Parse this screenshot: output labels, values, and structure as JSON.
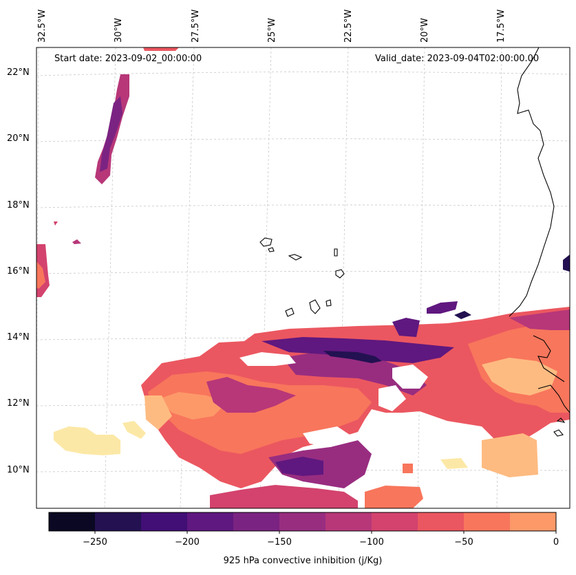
{
  "header": {
    "start_date": "Start date: 2023-09-02_00:00:00",
    "valid_date": "Valid_date: 2023-09-04T02:00:00.00"
  },
  "map": {
    "lon_labels": [
      "32.5°W",
      "30°W",
      "27.5°W",
      "25°W",
      "22.5°W",
      "20°W",
      "17.5°W"
    ],
    "lat_labels": [
      "22°N",
      "20°N",
      "18°N",
      "16°N",
      "14°N",
      "12°N",
      "10°N"
    ],
    "gridlines": true,
    "coastline_color": "#000000"
  },
  "colorbar": {
    "title": "925 hPa convective inhibition (j/Kg)",
    "tick_labels": [
      "−250",
      "−200",
      "−150",
      "−100",
      "−50",
      "0"
    ],
    "tick_values": [
      -250,
      -200,
      -150,
      -100,
      -50,
      0
    ],
    "range": [
      -275,
      0
    ],
    "bin_width": 25,
    "colors": [
      "#0a0822",
      "#231151",
      "#410f75",
      "#5f187f",
      "#7b2382",
      "#982d80",
      "#b73779",
      "#d3436e",
      "#eb5760",
      "#f8765c",
      "#fd9969",
      "#febb81",
      "#fcfdbf"
    ]
  }
}
